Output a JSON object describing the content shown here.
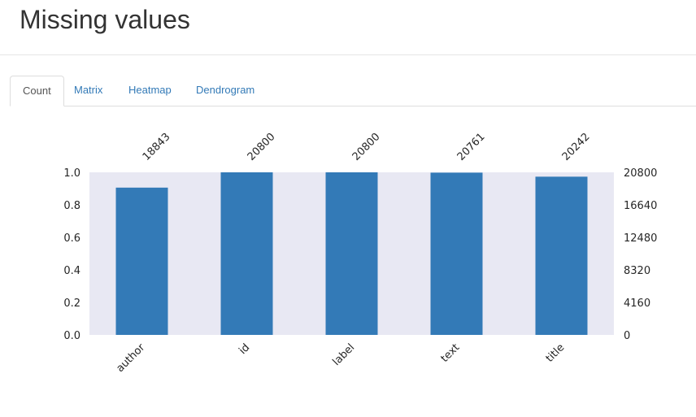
{
  "page": {
    "title": "Missing values"
  },
  "tabs": [
    {
      "label": "Count",
      "active": true
    },
    {
      "label": "Matrix",
      "active": false
    },
    {
      "label": "Heatmap",
      "active": false
    },
    {
      "label": "Dendrogram",
      "active": false
    }
  ],
  "colors": {
    "bar": "#337ab7",
    "plot_background": "#e8e8f3",
    "tab_link": "#337ab7",
    "text": "#333333"
  },
  "chart_data": {
    "type": "bar",
    "categories": [
      "author",
      "id",
      "label",
      "text",
      "title"
    ],
    "values": [
      0.9059,
      1.0,
      1.0,
      0.9981,
      0.9732
    ],
    "counts": [
      18843,
      20800,
      20800,
      20761,
      20242
    ],
    "ylim": [
      0,
      1.0
    ],
    "left_ticks": [
      "0.0",
      "0.2",
      "0.4",
      "0.6",
      "0.8",
      "1.0"
    ],
    "right_ticks": [
      "0",
      "4160",
      "8320",
      "12480",
      "16640",
      "20800"
    ],
    "grid": false,
    "legend": "none"
  }
}
